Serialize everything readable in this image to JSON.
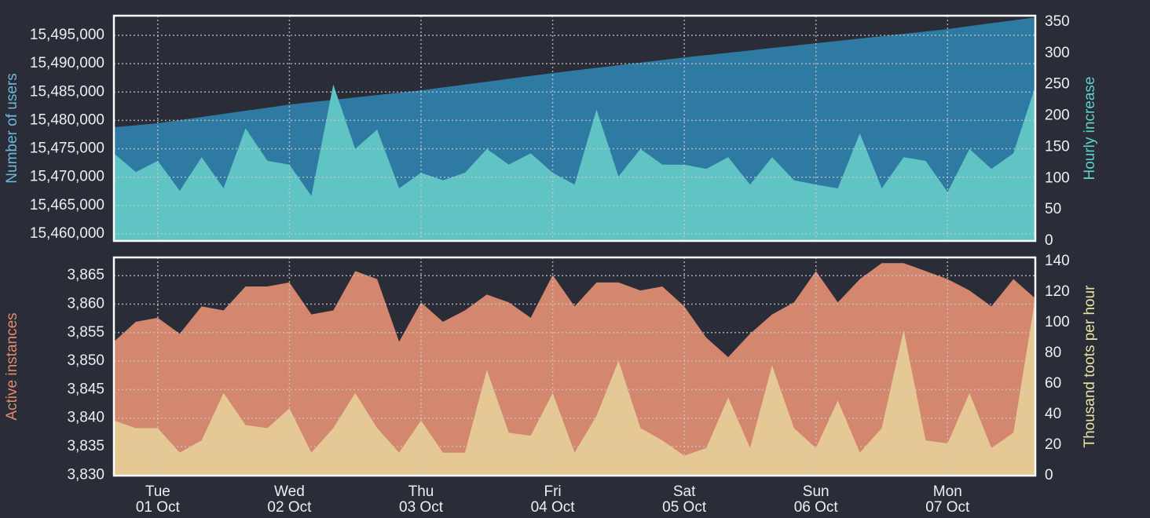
{
  "chart_data": [
    {
      "type": "area",
      "ylabel": "Number of users",
      "y2label": "Hourly increase",
      "ylim": [
        15458750,
        15498460
      ],
      "yticks": [
        {
          "value": 15460000,
          "label": "15,460,000"
        },
        {
          "value": 15465000,
          "label": "15,465,000"
        },
        {
          "value": 15470000,
          "label": "15,470,000"
        },
        {
          "value": 15475000,
          "label": "15,475,000"
        },
        {
          "value": 15480000,
          "label": "15,480,000"
        },
        {
          "value": 15485000,
          "label": "15,485,000"
        },
        {
          "value": 15490000,
          "label": "15,490,000"
        },
        {
          "value": 15495000,
          "label": "15,495,000"
        }
      ],
      "y2lim": [
        0,
        360
      ],
      "y2ticks": [
        0,
        50,
        100,
        150,
        200,
        250,
        300,
        350
      ],
      "grid": true,
      "series": [
        {
          "name": "Number of users",
          "color": "#2e7aa3",
          "label_color": "#6fb6dc",
          "axis": "y",
          "values": [
            15478800,
            15479150,
            15479500,
            15480050,
            15480600,
            15481150,
            15481700,
            15482250,
            15482800,
            15483220,
            15483630,
            15484050,
            15484470,
            15484880,
            15485300,
            15485810,
            15486320,
            15486830,
            15487330,
            15487840,
            15488350,
            15488810,
            15489270,
            15489730,
            15490180,
            15490640,
            15491100,
            15491520,
            15491930,
            15492350,
            15492770,
            15493180,
            15493600,
            15494020,
            15494430,
            15494850,
            15495270,
            15495680,
            15496100,
            15496620,
            15497140,
            15497650,
            15498170
          ]
        },
        {
          "name": "Hourly increase",
          "color": "#61c4c4",
          "label_color": "#5fd0c8",
          "axis": "y2",
          "values": [
            140,
            110,
            128,
            80,
            134,
            84,
            180,
            128,
            122,
            72,
            250,
            147,
            178,
            84,
            109,
            97,
            109,
            147,
            122,
            140,
            109,
            90,
            210,
            103,
            147,
            122,
            122,
            115,
            134,
            90,
            134,
            97,
            90,
            84,
            172,
            84,
            134,
            128,
            78,
            147,
            115,
            140,
            247
          ]
        }
      ]
    },
    {
      "type": "area",
      "ylabel": "Active instances",
      "y2label": "Thousand toots per hour",
      "ylim": [
        3829.9,
        3868.2
      ],
      "yticks": [
        {
          "value": 3830,
          "label": "3,830"
        },
        {
          "value": 3835,
          "label": "3,835"
        },
        {
          "value": 3840,
          "label": "3,840"
        },
        {
          "value": 3845,
          "label": "3,845"
        },
        {
          "value": 3850,
          "label": "3,850"
        },
        {
          "value": 3855,
          "label": "3,855"
        },
        {
          "value": 3860,
          "label": "3,860"
        },
        {
          "value": 3865,
          "label": "3,865"
        }
      ],
      "y2lim": [
        0,
        142.5
      ],
      "y2ticks": [
        0,
        20,
        40,
        60,
        80,
        100,
        120,
        140
      ],
      "grid": true,
      "categories": [
        null,
        null,
        {
          "weekday": "Tue",
          "date": "01 Oct"
        },
        null,
        null,
        null,
        null,
        null,
        {
          "weekday": "Wed",
          "date": "02 Oct"
        },
        null,
        null,
        null,
        null,
        null,
        {
          "weekday": "Thu",
          "date": "03 Oct"
        },
        null,
        null,
        null,
        null,
        null,
        {
          "weekday": "Fri",
          "date": "04 Oct"
        },
        null,
        null,
        null,
        null,
        null,
        {
          "weekday": "Sat",
          "date": "05 Oct"
        },
        null,
        null,
        null,
        null,
        null,
        {
          "weekday": "Sun",
          "date": "06 Oct"
        },
        null,
        null,
        null,
        null,
        null,
        {
          "weekday": "Mon",
          "date": "07 Oct"
        },
        null,
        null,
        null,
        null
      ],
      "series": [
        {
          "name": "Active instances",
          "color": "#d4876f",
          "label_color": "#e08a6c",
          "axis": "y",
          "values": [
            3853.4,
            3856.9,
            3857.6,
            3854.8,
            3859.6,
            3858.9,
            3863.1,
            3863.1,
            3863.8,
            3858.2,
            3858.9,
            3865.8,
            3864.4,
            3853.4,
            3860.3,
            3856.9,
            3858.9,
            3861.7,
            3860.3,
            3857.6,
            3865.1,
            3859.6,
            3863.8,
            3863.8,
            3862.4,
            3863.1,
            3859.6,
            3854.1,
            3850.7,
            3854.8,
            3858.2,
            3860.3,
            3865.8,
            3860.3,
            3864.4,
            3867.2,
            3867.2,
            3865.8,
            3864.4,
            3862.4,
            3859.6,
            3864.4,
            3861.0
          ]
        },
        {
          "name": "Thousand toots per hour",
          "color": "#e6c894",
          "label_color": "#e6e2a4",
          "axis": "y2",
          "values": [
            36,
            31,
            31,
            15,
            23,
            54,
            33,
            31,
            44,
            15,
            31,
            54,
            31,
            15,
            36,
            15,
            15,
            69,
            28,
            26,
            54,
            15,
            39,
            75,
            31,
            23,
            13,
            18,
            51,
            18,
            72,
            31,
            18,
            49,
            15,
            31,
            95,
            23,
            21,
            54,
            18,
            28,
            116
          ]
        }
      ]
    }
  ]
}
